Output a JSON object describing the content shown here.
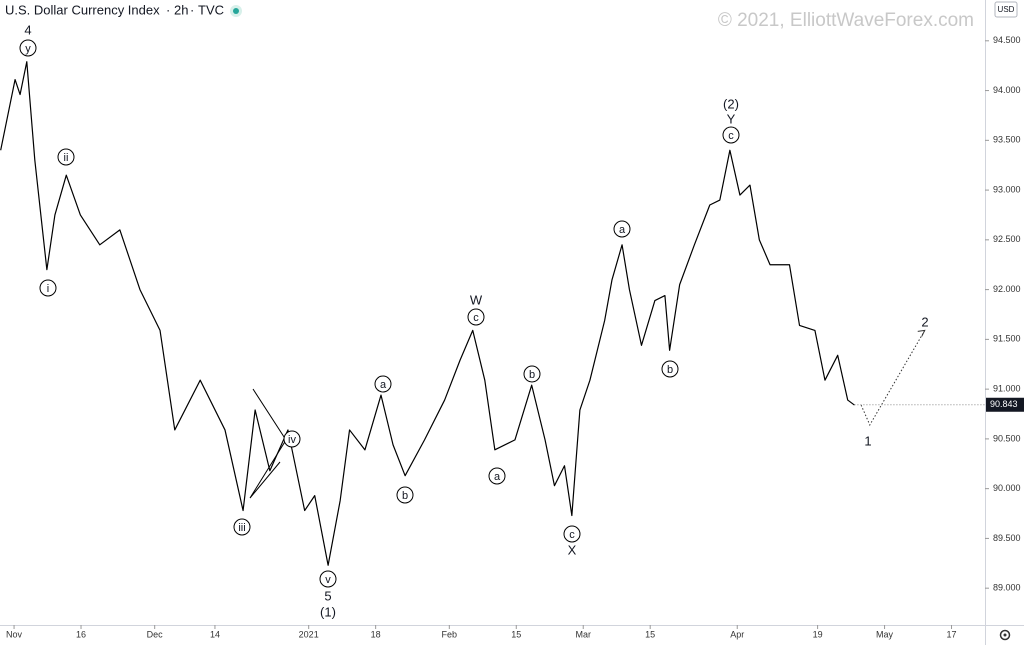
{
  "chart_data": {
    "type": "line",
    "title": "U.S. Dollar Currency Index",
    "interval": "2h",
    "source": "TVC",
    "watermark": "© 2021, ElliottWaveForex.com",
    "currency": "USD",
    "color": "#000000",
    "x": [
      -2,
      0.15,
      0.9,
      1.9,
      3.1,
      4.9,
      6.1,
      7.8,
      9.9,
      12.8,
      15.8,
      18.8,
      21.8,
      24,
      27.8,
      31.5,
      34.2,
      36,
      38.2,
      40.9,
      43.4,
      44.9,
      46.9,
      48.7,
      50.1,
      52.4,
      54.8,
      56.6,
      58.4,
      61.3,
      64.3,
      66.6,
      68.5,
      70.3,
      71.8,
      74.8,
      77.3,
      79.3,
      80.7,
      82.2,
      83.3,
      84.5,
      86,
      88.2,
      89.3,
      90.8,
      91.9,
      93.7,
      95.7,
      97.2,
      97.9,
      99.4,
      101.6,
      103.9,
      105.4,
      106.9,
      108.4,
      109.9,
      111.3,
      112.9,
      115.8,
      117.3,
      119.6,
      121.1,
      123,
      124.5,
      125.5
    ],
    "values": [
      93.4,
      94.11,
      93.96,
      94.29,
      93.3,
      92.2,
      92.75,
      93.15,
      92.75,
      92.45,
      92.6,
      92.0,
      91.59,
      90.59,
      91.09,
      90.59,
      89.78,
      90.79,
      90.18,
      90.59,
      89.78,
      89.93,
      89.23,
      89.88,
      90.59,
      90.39,
      90.94,
      90.44,
      90.13,
      90.49,
      90.89,
      91.29,
      91.59,
      91.09,
      90.39,
      90.49,
      91.04,
      90.49,
      90.03,
      90.23,
      89.73,
      90.79,
      91.09,
      91.69,
      92.1,
      92.45,
      92.0,
      91.44,
      91.89,
      91.94,
      91.39,
      92.05,
      92.45,
      92.85,
      92.9,
      93.4,
      92.95,
      93.05,
      92.5,
      92.25,
      92.25,
      91.64,
      91.59,
      91.09,
      91.34,
      90.89,
      90.84
    ],
    "projection": {
      "x": [
        126.5,
        127.8,
        136
      ],
      "values": [
        90.84,
        90.64,
        91.59
      ]
    },
    "last_price": 90.843,
    "xlim": [
      -2.1,
      145
    ],
    "ylim": [
      88.63,
      94.91
    ],
    "xticks": [
      {
        "value": 0,
        "label": "Nov"
      },
      {
        "value": 10,
        "label": "16"
      },
      {
        "value": 21,
        "label": "Dec"
      },
      {
        "value": 30,
        "label": "14"
      },
      {
        "value": 44,
        "label": "2021"
      },
      {
        "value": 54,
        "label": "18"
      },
      {
        "value": 65,
        "label": "Feb"
      },
      {
        "value": 75,
        "label": "15"
      },
      {
        "value": 85,
        "label": "Mar"
      },
      {
        "value": 95,
        "label": "15"
      },
      {
        "value": 108,
        "label": "Apr"
      },
      {
        "value": 120,
        "label": "19"
      },
      {
        "value": 130,
        "label": "May"
      },
      {
        "value": 140,
        "label": "17"
      }
    ],
    "yticks": [
      {
        "value": 89,
        "label": "89.000"
      },
      {
        "value": 89.5,
        "label": "89.500"
      },
      {
        "value": 90,
        "label": "90.000"
      },
      {
        "value": 90.5,
        "label": "90.500"
      },
      {
        "value": 91,
        "label": "91.000"
      },
      {
        "value": 91.5,
        "label": "91.500"
      },
      {
        "value": 92,
        "label": "92.000"
      },
      {
        "value": 92.5,
        "label": "92.500"
      },
      {
        "value": 93,
        "label": "93.000"
      },
      {
        "value": 93.5,
        "label": "93.500"
      },
      {
        "value": 94,
        "label": "94.000"
      },
      {
        "value": 94.5,
        "label": "94.500"
      }
    ],
    "annotations": [
      {
        "text": "4",
        "circled": false
      },
      {
        "text": "y",
        "circled": true
      },
      {
        "text": "ii",
        "circled": true
      },
      {
        "text": "i",
        "circled": true
      },
      {
        "text": "iii",
        "circled": true
      },
      {
        "text": "iv",
        "circled": true
      },
      {
        "text": "v",
        "circled": true
      },
      {
        "text": "5",
        "circled": false
      },
      {
        "text": "(1)",
        "circled": false
      },
      {
        "text": "a",
        "circled": true
      },
      {
        "text": "b",
        "circled": true
      },
      {
        "text": "W",
        "circled": false
      },
      {
        "text": "c",
        "circled": true
      },
      {
        "text": "a",
        "circled": true
      },
      {
        "text": "b",
        "circled": true
      },
      {
        "text": "c",
        "circled": true
      },
      {
        "text": "X",
        "circled": false
      },
      {
        "text": "a",
        "circled": true
      },
      {
        "text": "b",
        "circled": true
      },
      {
        "text": "(2)",
        "circled": false
      },
      {
        "text": "Y",
        "circled": false
      },
      {
        "text": "c",
        "circled": true
      },
      {
        "text": "1",
        "circled": false
      },
      {
        "text": "2",
        "circled": false
      }
    ]
  }
}
